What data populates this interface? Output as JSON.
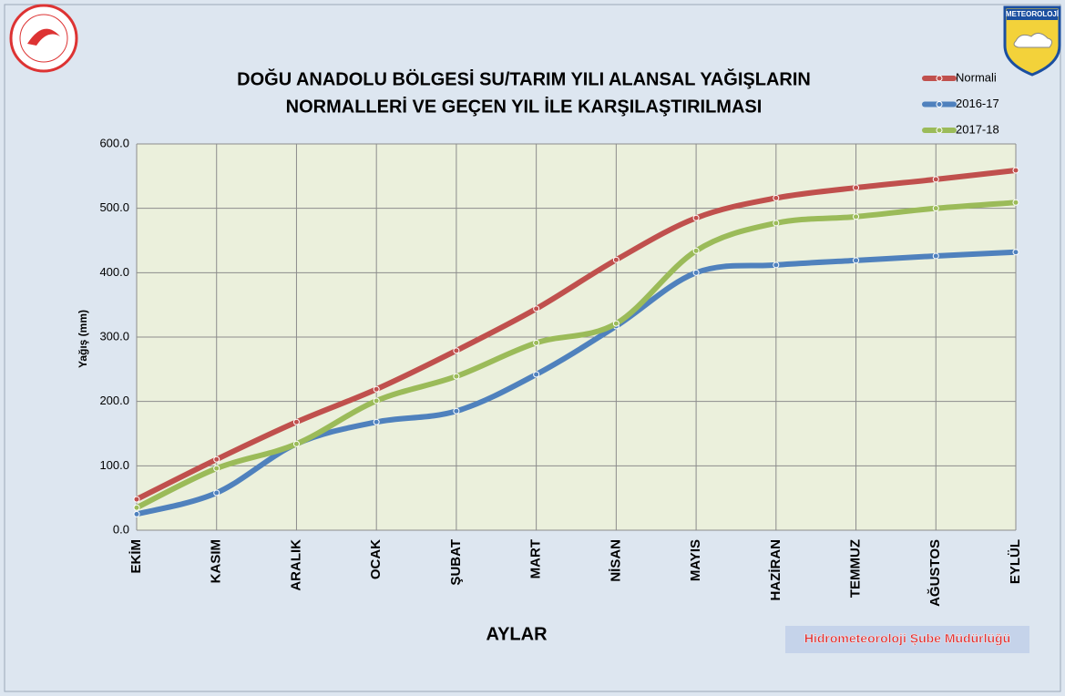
{
  "chart_data": {
    "type": "line",
    "title": [
      "DOĞU ANADOLU BÖLGESİ  SU/TARIM YILI ALANSAL YAĞIŞLARIN",
      "NORMALLERİ VE GEÇEN YIL İLE KARŞILAŞTIRILMASI"
    ],
    "x_label": "AYLAR",
    "y_label": "Yağış (mm)",
    "categories": [
      "EKİM",
      "KASIM",
      "ARALIK",
      "OCAK",
      "ŞUBAT",
      "MART",
      "NİSAN",
      "MAYIS",
      "HAZİRAN",
      "TEMMUZ",
      "AĞUSTOS",
      "EYLÜL"
    ],
    "series": [
      {
        "name": "Normali",
        "color": "#c0504d",
        "values": [
          48,
          110,
          168,
          219,
          279,
          344,
          420,
          485,
          516,
          532,
          545,
          559
        ]
      },
      {
        "name": "2016-17",
        "color": "#4f81bd",
        "values": [
          25,
          58,
          134,
          168,
          185,
          242,
          317,
          400,
          412,
          419,
          426,
          432
        ]
      },
      {
        "name": "2017-18",
        "color": "#9bbb59",
        "values": [
          35,
          96,
          134,
          201,
          239,
          291,
          321,
          434,
          477,
          487,
          500,
          509
        ]
      }
    ],
    "ylim": [
      0,
      600
    ],
    "yticks": [
      {
        "value": 0,
        "label": "0.0"
      },
      {
        "value": 100,
        "label": "100.0"
      },
      {
        "value": 200,
        "label": "200.0"
      },
      {
        "value": 300,
        "label": "300.0"
      },
      {
        "value": 400,
        "label": "400.0"
      },
      {
        "value": 500,
        "label": "500.0"
      },
      {
        "value": 600,
        "label": "600.0"
      }
    ],
    "grid": true,
    "smooth": true,
    "legend": "top-right",
    "annotations": [
      "Hidrometeoroloji  Şube Müdürlüğü"
    ],
    "logo_text": "METEOROLOJİ"
  }
}
